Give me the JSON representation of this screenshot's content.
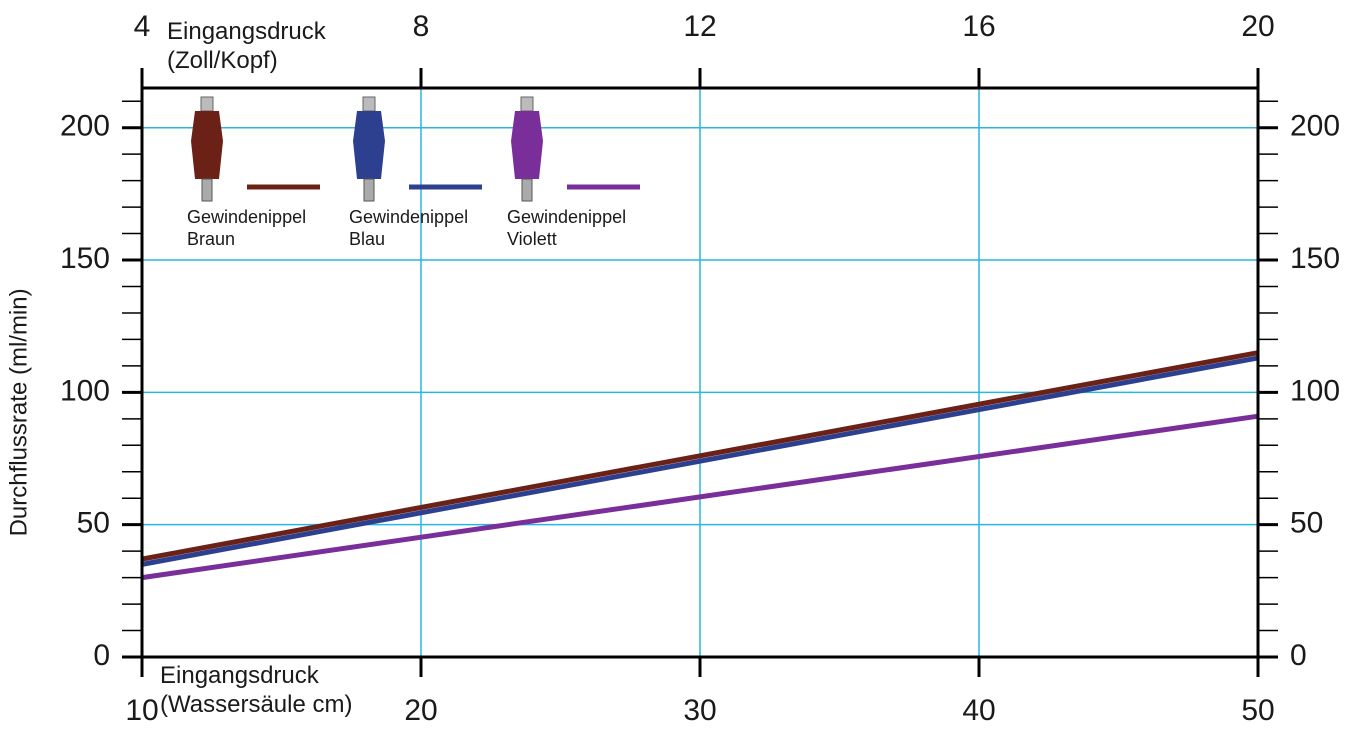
{
  "chart_data": {
    "type": "line",
    "x_label": "Eingangsdruck (Wassersäule cm)",
    "x2_label": "Eingangsdruck (Zoll/Kopf)",
    "y_label": "Durchflussrate (ml/min)",
    "x": [
      10,
      50
    ],
    "series": [
      {
        "name": "Gewindenippel Braun",
        "color": "#6b2116",
        "values": [
          37,
          115
        ]
      },
      {
        "name": "Gewindenippel Blau",
        "color": "#2d3f8f",
        "values": [
          35,
          113
        ]
      },
      {
        "name": "Gewindenippel Violett",
        "color": "#7a2e9a",
        "values": [
          30,
          91
        ]
      }
    ],
    "xlim": [
      10,
      50
    ],
    "xticks": [
      10,
      20,
      30,
      40,
      50
    ],
    "x2lim": [
      4,
      20
    ],
    "x2ticks": [
      4,
      8,
      12,
      16,
      20
    ],
    "ylim": [
      0,
      215
    ],
    "yticks": [
      0,
      50,
      100,
      150,
      200
    ],
    "y2lim": [
      0,
      215
    ],
    "y2ticks": [
      0,
      50,
      100,
      150,
      200
    ],
    "y_minor_ticks": [
      10,
      20,
      30,
      40,
      60,
      70,
      80,
      90,
      110,
      120,
      130,
      140,
      160,
      170,
      180,
      190,
      210
    ],
    "grid": true,
    "grid_color": "#29b6e0",
    "legend": "upper left"
  }
}
